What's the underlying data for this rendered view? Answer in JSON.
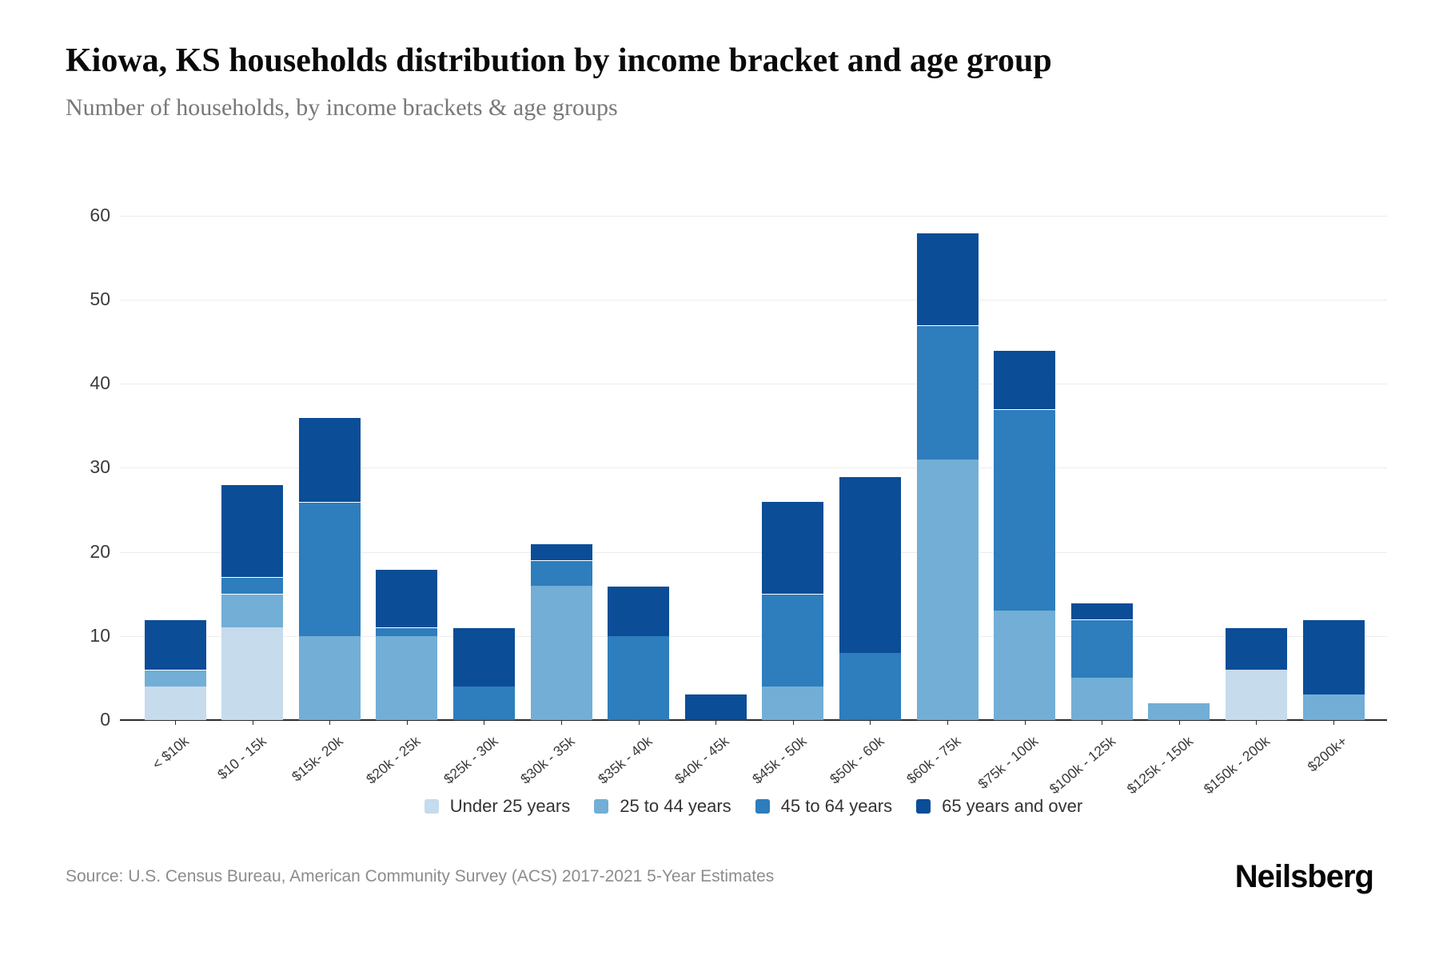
{
  "header": {
    "title": "Kiowa, KS households distribution by income bracket and age group",
    "subtitle": "Number of households, by income brackets & age groups"
  },
  "chart_data": {
    "type": "bar",
    "stacked": true,
    "title": "Kiowa, KS households distribution by income bracket and age group",
    "subtitle": "Number of households, by income brackets & age groups",
    "xlabel": "",
    "ylabel": "",
    "ylim": [
      0,
      60
    ],
    "yticks": [
      0,
      10,
      20,
      30,
      40,
      50,
      60
    ],
    "grid": true,
    "legend_position": "bottom",
    "categories": [
      "< $10k",
      "$10 - 15k",
      "$15k- 20k",
      "$20k - 25k",
      "$25k - 30k",
      "$30k - 35k",
      "$35k - 40k",
      "$40k - 45k",
      "$45k - 50k",
      "$50k - 60k",
      "$60k - 75k",
      "$75k - 100k",
      "$100k - 125k",
      "$125k - 150k",
      "$150k - 200k",
      "$200k+"
    ],
    "series": [
      {
        "name": "Under 25 years",
        "color": "#c6dbec",
        "values": [
          4,
          11,
          0,
          0,
          0,
          0,
          0,
          0,
          0,
          0,
          0,
          0,
          0,
          0,
          6,
          0
        ]
      },
      {
        "name": "25 to 44 years",
        "color": "#72aed6",
        "values": [
          2,
          4,
          10,
          10,
          0,
          16,
          0,
          0,
          4,
          0,
          31,
          13,
          5,
          2,
          0,
          3
        ]
      },
      {
        "name": "45 to 64 years",
        "color": "#2e7dbc",
        "values": [
          0,
          2,
          16,
          1,
          4,
          3,
          10,
          0,
          11,
          8,
          16,
          24,
          7,
          0,
          0,
          0
        ]
      },
      {
        "name": "65 years and over",
        "color": "#0b4d97",
        "values": [
          6,
          11,
          10,
          7,
          7,
          2,
          6,
          3,
          11,
          21,
          11,
          7,
          2,
          0,
          5,
          9
        ]
      }
    ],
    "totals": [
      12,
      28,
      36,
      18,
      11,
      21,
      16,
      3,
      26,
      29,
      58,
      44,
      14,
      2,
      11,
      12
    ]
  },
  "footer": {
    "source": "Source: U.S. Census Bureau, American Community Survey (ACS) 2017-2021 5-Year Estimates",
    "brand": "Neilsberg"
  }
}
